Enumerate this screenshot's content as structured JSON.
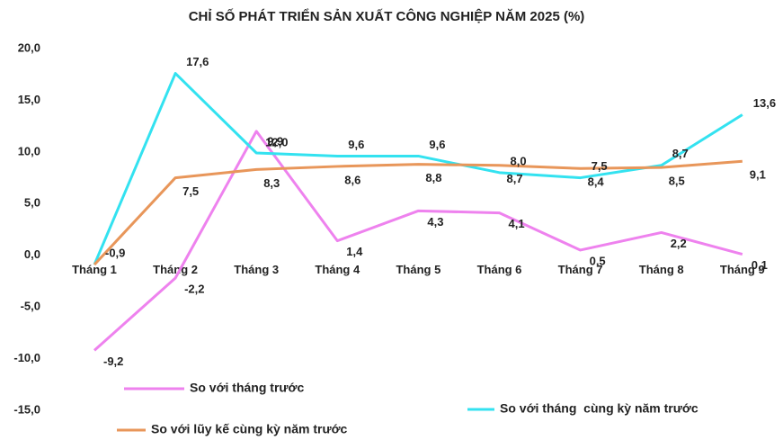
{
  "chart_data": {
    "type": "line",
    "title": "CHỈ SỐ PHÁT TRIỂN SẢN XUẤT CÔNG NGHIỆP NĂM 2025 (%)",
    "categories": [
      "Tháng 1",
      "Tháng 2",
      "Tháng 3",
      "Tháng 4",
      "Tháng 5",
      "Tháng 6",
      "Tháng 7",
      "Tháng 8",
      "Tháng 9"
    ],
    "series": [
      {
        "name": "So với tháng trước",
        "color": "#ee82ee",
        "values": [
          -9.2,
          -2.2,
          12.0,
          1.4,
          4.3,
          4.1,
          0.5,
          2.2,
          0.1
        ],
        "value_labels": [
          "-9,2",
          "-2,2",
          "12,0",
          "1,4",
          "4,3",
          "4,1",
          "0,5",
          "2,2",
          "0,1"
        ]
      },
      {
        "name": "So với tháng  cùng kỳ năm trước",
        "color": "#33e2f0",
        "values": [
          -0.9,
          17.6,
          9.9,
          9.6,
          9.6,
          8.0,
          7.5,
          8.7,
          13.6
        ],
        "value_labels": [
          "-0,9",
          "17,6",
          "9,9",
          "9,6",
          "9,6",
          "8,0",
          "7,5",
          "8,7",
          "13,6"
        ]
      },
      {
        "name": "So với lũy kế cùng kỳ năm trước",
        "color": "#e8965a",
        "values": [
          -0.9,
          7.5,
          8.3,
          8.6,
          8.8,
          8.7,
          8.4,
          8.5,
          9.1
        ],
        "value_labels": [
          null,
          "7,5",
          "8,3",
          "8,6",
          "8,8",
          "8,7",
          "8,4",
          "8,5",
          "9,1"
        ]
      }
    ],
    "ylim": [
      -15,
      20
    ],
    "yticks": [
      {
        "value": -15,
        "label": "-15,0"
      },
      {
        "value": -10,
        "label": "-10,0"
      },
      {
        "value": -5,
        "label": "-5,0"
      },
      {
        "value": 0,
        "label": "0,0"
      },
      {
        "value": 5,
        "label": "5,0"
      },
      {
        "value": 10,
        "label": "10,0"
      },
      {
        "value": 15,
        "label": "15,0"
      },
      {
        "value": 20,
        "label": "20,0"
      }
    ],
    "grid": false
  }
}
